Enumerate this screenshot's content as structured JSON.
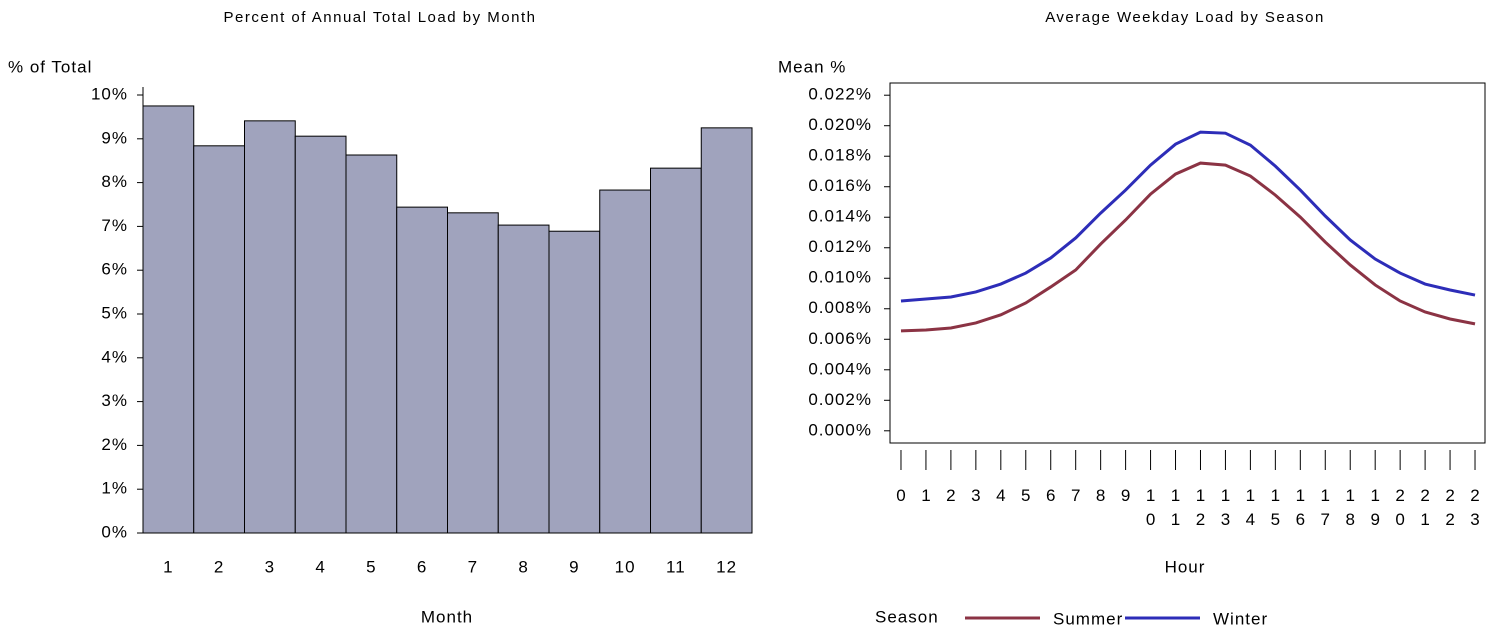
{
  "chart_data": [
    {
      "type": "bar",
      "title": "Percent of Annual Total Load by Month",
      "y_label": "% of Total",
      "x_label": "Month",
      "categories": [
        "1",
        "2",
        "3",
        "4",
        "5",
        "6",
        "7",
        "8",
        "9",
        "10",
        "11",
        "12"
      ],
      "values": [
        9.75,
        8.84,
        9.41,
        9.06,
        8.63,
        7.44,
        7.31,
        7.03,
        6.89,
        7.83,
        8.33,
        9.25
      ],
      "color": "#a0a3bd",
      "ylim": [
        0,
        10
      ],
      "yticks": [
        {
          "value": 0,
          "label": "0%"
        },
        {
          "value": 1,
          "label": "1%"
        },
        {
          "value": 2,
          "label": "2%"
        },
        {
          "value": 3,
          "label": "3%"
        },
        {
          "value": 4,
          "label": "4%"
        },
        {
          "value": 5,
          "label": "5%"
        },
        {
          "value": 6,
          "label": "6%"
        },
        {
          "value": 7,
          "label": "7%"
        },
        {
          "value": 8,
          "label": "8%"
        },
        {
          "value": 9,
          "label": "9%"
        },
        {
          "value": 10,
          "label": "10%"
        }
      ]
    },
    {
      "type": "line",
      "title": "Average Weekday Load by Season",
      "y_label": "Mean %",
      "x_label": "Hour",
      "legend_title": "Season",
      "x": [
        0,
        1,
        2,
        3,
        4,
        5,
        6,
        7,
        8,
        9,
        10,
        11,
        12,
        13,
        14,
        15,
        16,
        17,
        18,
        19,
        20,
        21,
        22,
        23
      ],
      "xlim": [
        -0.44,
        23.4
      ],
      "xticks": [
        0,
        1,
        2,
        3,
        4,
        5,
        6,
        7,
        8,
        9,
        10,
        11,
        12,
        13,
        14,
        15,
        16,
        17,
        18,
        19,
        20,
        21,
        22,
        23
      ],
      "series": [
        {
          "name": "Summer",
          "color": "#8b3344",
          "values": [
            0.00655,
            0.00661,
            0.00674,
            0.00707,
            0.0076,
            0.00838,
            0.00943,
            0.01054,
            0.01224,
            0.01382,
            0.01552,
            0.01683,
            0.01755,
            0.01742,
            0.0167,
            0.01545,
            0.01401,
            0.01237,
            0.01087,
            0.00956,
            0.00851,
            0.00779,
            0.00733,
            0.00701
          ]
        },
        {
          "name": "Winter",
          "color": "#2d2db8",
          "values": [
            0.00851,
            0.00864,
            0.00877,
            0.0091,
            0.00962,
            0.01034,
            0.01133,
            0.01264,
            0.01427,
            0.01578,
            0.01742,
            0.01879,
            0.01958,
            0.01951,
            0.01873,
            0.01735,
            0.01578,
            0.01408,
            0.01251,
            0.01126,
            0.01034,
            0.00962,
            0.00923,
            0.0089
          ]
        }
      ],
      "ylim": [
        -0.0008,
        0.0228
      ],
      "yticks": [
        {
          "value": 0,
          "label": "0.000%"
        },
        {
          "value": 0.002,
          "label": "0.002%"
        },
        {
          "value": 0.004,
          "label": "0.004%"
        },
        {
          "value": 0.006,
          "label": "0.006%"
        },
        {
          "value": 0.008,
          "label": "0.008%"
        },
        {
          "value": 0.01,
          "label": "0.010%"
        },
        {
          "value": 0.012,
          "label": "0.012%"
        },
        {
          "value": 0.014,
          "label": "0.014%"
        },
        {
          "value": 0.016,
          "label": "0.016%"
        },
        {
          "value": 0.018,
          "label": "0.018%"
        },
        {
          "value": 0.02,
          "label": "0.020%"
        },
        {
          "value": 0.022,
          "label": "0.022%"
        }
      ]
    }
  ]
}
